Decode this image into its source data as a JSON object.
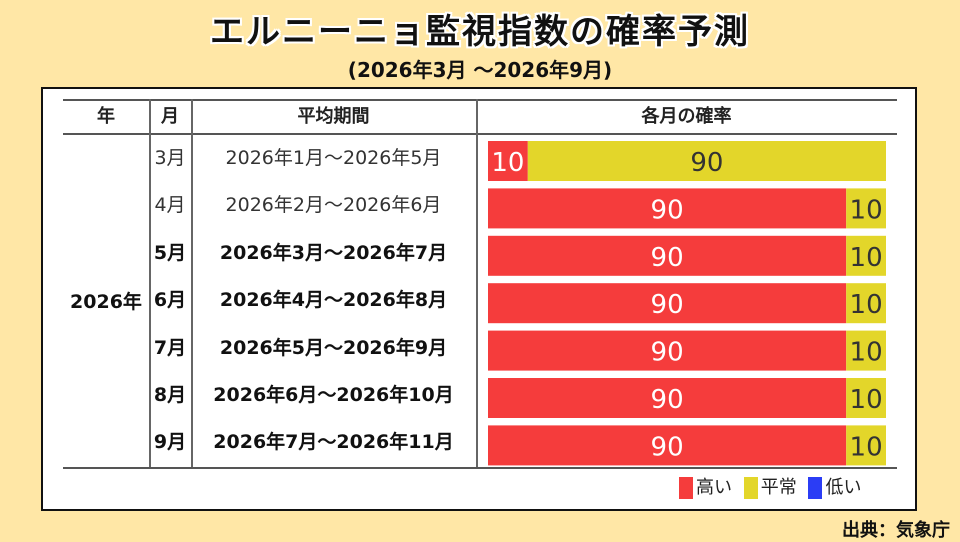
{
  "title": "エルニーニョ監視指数の確率予測",
  "subtitle": "(2026年3月 ～2026年9月)",
  "source": "出典：気象庁",
  "headers": {
    "year": "年",
    "month": "月",
    "period": "平均期間",
    "prob": "各月の確率"
  },
  "year_label": "2026年",
  "rows": [
    {
      "month": "3月",
      "period": "2026年1月～2026年5月",
      "bold": false
    },
    {
      "month": "4月",
      "period": "2026年2月～2026年6月",
      "bold": false
    },
    {
      "month": "5月",
      "period": "2026年3月～2026年7月",
      "bold": true
    },
    {
      "month": "6月",
      "period": "2026年4月～2026年8月",
      "bold": true
    },
    {
      "month": "7月",
      "period": "2026年5月～2026年9月",
      "bold": true
    },
    {
      "month": "8月",
      "period": "2026年6月～2026年10月",
      "bold": true
    },
    {
      "month": "9月",
      "period": "2026年7月～2026年11月",
      "bold": true
    }
  ],
  "colors": {
    "high": "#f53c3c",
    "normal": "#e3d62a",
    "low": "#2b3df5"
  },
  "chart_data": {
    "type": "bar",
    "stacked": true,
    "orientation": "horizontal",
    "categories": [
      "3月",
      "4月",
      "5月",
      "6月",
      "7月",
      "8月",
      "9月"
    ],
    "series": [
      {
        "name": "高い",
        "values": [
          10,
          90,
          90,
          90,
          90,
          90,
          90
        ]
      },
      {
        "name": "平常",
        "values": [
          90,
          10,
          10,
          10,
          10,
          10,
          10
        ]
      },
      {
        "name": "低い",
        "values": [
          0,
          0,
          0,
          0,
          0,
          0,
          0
        ]
      }
    ],
    "xlim": [
      0,
      100
    ],
    "legend": "bottom-right"
  }
}
